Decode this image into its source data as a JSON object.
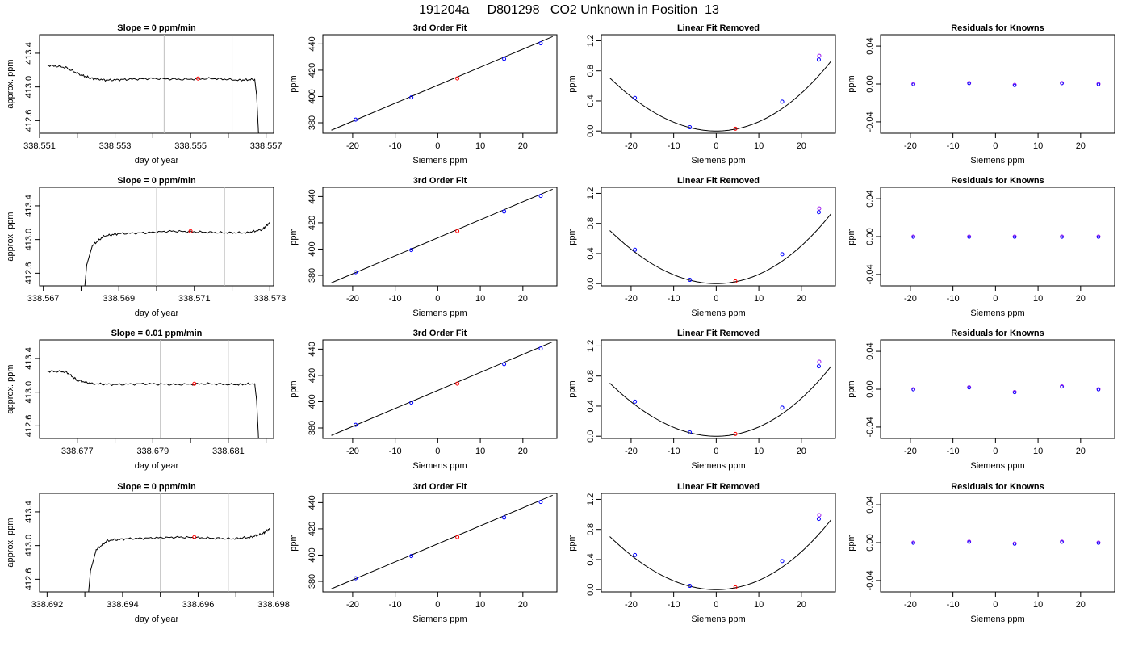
{
  "page_title": "191204a     D801298   CO2 Unknown in Position  13",
  "chart_data": [
    {
      "type": "line",
      "panel": "time-series",
      "row": 1,
      "title": "Slope =  0  ppm/min",
      "xlabel": "day of year",
      "ylabel": "approx. ppm",
      "xlim": [
        338.551,
        338.5572
      ],
      "ylim": [
        412.45,
        413.62
      ],
      "xticks": [
        338.551,
        338.552,
        338.553,
        338.554,
        338.555,
        338.556,
        338.557
      ],
      "xtick_labels": [
        "338.551",
        "",
        "338.553",
        "",
        "338.555",
        "",
        "338.557"
      ],
      "yticks": [
        412.6,
        413.0,
        413.4
      ],
      "ytick_labels": [
        "412.6",
        "413.0",
        "413.4"
      ],
      "vlines": [
        338.5543,
        338.5561
      ],
      "highlight_point": {
        "x": 338.5552,
        "y": 413.1
      },
      "series": [
        {
          "x": [
            338.5512,
            338.5517,
            338.5521,
            338.5524,
            338.5528,
            338.5533,
            338.554,
            338.5548,
            338.5556,
            338.5563,
            338.5567,
            338.55675,
            338.5568
          ],
          "y": [
            413.26,
            413.23,
            413.14,
            413.1,
            413.08,
            413.09,
            413.1,
            413.09,
            413.1,
            413.08,
            413.09,
            412.9,
            412.45
          ]
        }
      ]
    },
    {
      "type": "line",
      "panel": "time-series",
      "row": 2,
      "title": "Slope =  0  ppm/min",
      "xlabel": "day of year",
      "ylabel": "approx. ppm",
      "xlim": [
        338.5669,
        338.5731
      ],
      "ylim": [
        412.45,
        413.62
      ],
      "xticks": [
        338.567,
        338.568,
        338.569,
        338.57,
        338.571,
        338.572,
        338.573
      ],
      "xtick_labels": [
        "338.567",
        "",
        "338.569",
        "",
        "338.571",
        "",
        "338.573"
      ],
      "yticks": [
        412.6,
        413.0,
        413.4
      ],
      "ytick_labels": [
        "412.6",
        "413.0",
        "413.4"
      ],
      "vlines": [
        338.57,
        338.5718
      ],
      "highlight_point": {
        "x": 338.5709,
        "y": 413.1
      },
      "series": [
        {
          "x": [
            338.5681,
            338.56815,
            338.5683,
            338.5686,
            338.569,
            338.5697,
            338.5704,
            338.5711,
            338.5718,
            338.5724,
            338.5728,
            338.573
          ],
          "y": [
            412.45,
            412.7,
            412.93,
            413.04,
            413.07,
            413.08,
            413.1,
            413.09,
            413.08,
            413.08,
            413.12,
            413.2
          ]
        }
      ]
    },
    {
      "type": "line",
      "panel": "time-series",
      "row": 3,
      "title": "Slope =  0.01  ppm/min",
      "xlabel": "day of year",
      "ylabel": "approx. ppm",
      "xlim": [
        338.676,
        338.6822
      ],
      "ylim": [
        412.45,
        413.62
      ],
      "xticks": [
        338.677,
        338.678,
        338.679,
        338.68,
        338.681,
        338.682
      ],
      "xtick_labels": [
        "338.677",
        "",
        "338.679",
        "",
        "338.681",
        ""
      ],
      "yticks": [
        412.6,
        413.0,
        413.4
      ],
      "ytick_labels": [
        "412.6",
        "413.0",
        "413.4"
      ],
      "vlines": [
        338.6792,
        338.681
      ],
      "highlight_point": {
        "x": 338.6801,
        "y": 413.1
      },
      "series": [
        {
          "x": [
            338.6762,
            338.6767,
            338.677,
            338.6774,
            338.678,
            338.6788,
            338.6796,
            338.6804,
            338.6812,
            338.6817,
            338.68175,
            338.6818
          ],
          "y": [
            413.25,
            413.24,
            413.14,
            413.1,
            413.09,
            413.1,
            413.09,
            413.1,
            413.09,
            413.1,
            412.9,
            412.45
          ]
        }
      ]
    },
    {
      "type": "line",
      "panel": "time-series",
      "row": 4,
      "title": "Slope =  0  ppm/min",
      "xlabel": "day of year",
      "ylabel": "approx. ppm",
      "xlim": [
        338.6918,
        338.698
      ],
      "ylim": [
        412.45,
        413.62
      ],
      "xticks": [
        338.692,
        338.693,
        338.694,
        338.695,
        338.696,
        338.697,
        338.698
      ],
      "xtick_labels": [
        "338.692",
        "",
        "338.694",
        "",
        "338.696",
        "",
        "338.698"
      ],
      "yticks": [
        412.6,
        413.0,
        413.4
      ],
      "ytick_labels": [
        "412.6",
        "413.0",
        "413.4"
      ],
      "vlines": [
        338.695,
        338.6968
      ],
      "highlight_point": {
        "x": 338.6959,
        "y": 413.1
      },
      "series": [
        {
          "x": [
            338.6931,
            338.69315,
            338.6933,
            338.6936,
            338.6941,
            338.6948,
            338.6955,
            338.6962,
            338.6969,
            338.6974,
            338.6977,
            338.6979
          ],
          "y": [
            412.45,
            412.7,
            412.95,
            413.06,
            413.08,
            413.09,
            413.1,
            413.09,
            413.08,
            413.1,
            413.14,
            413.2
          ]
        }
      ]
    },
    {
      "type": "scatter",
      "panel": "fit",
      "row": 1,
      "title": "3rd Order Fit",
      "xlabel": "Siemens ppm",
      "ylabel": "ppm",
      "xlim": [
        -27,
        28
      ],
      "ylim": [
        372,
        447
      ],
      "xticks": [
        -20,
        -10,
        0,
        10,
        20
      ],
      "yticks": [
        380,
        400,
        420,
        440
      ],
      "line": {
        "x": [
          -25,
          27
        ],
        "y": [
          374.3,
          445.6
        ]
      },
      "points_known": {
        "x": [
          -19.3,
          -6.2,
          15.6,
          24.2
        ],
        "y": [
          382.4,
          399.3,
          428.6,
          440.5
        ]
      },
      "points_unknown": {
        "x": [
          4.6
        ],
        "y": [
          413.7
        ]
      }
    },
    {
      "type": "scatter",
      "panel": "fit",
      "row": 2,
      "title": "3rd Order Fit",
      "xlabel": "Siemens ppm",
      "ylabel": "ppm",
      "xlim": [
        -27,
        28
      ],
      "ylim": [
        372,
        447
      ],
      "xticks": [
        -20,
        -10,
        0,
        10,
        20
      ],
      "yticks": [
        380,
        400,
        420,
        440
      ],
      "line": {
        "x": [
          -25,
          27
        ],
        "y": [
          374.3,
          445.6
        ]
      },
      "points_known": {
        "x": [
          -19.3,
          -6.2,
          15.6,
          24.2
        ],
        "y": [
          382.4,
          399.3,
          428.6,
          440.5
        ]
      },
      "points_unknown": {
        "x": [
          4.6
        ],
        "y": [
          413.7
        ]
      }
    },
    {
      "type": "scatter",
      "panel": "fit",
      "row": 3,
      "title": "3rd Order Fit",
      "xlabel": "Siemens ppm",
      "ylabel": "ppm",
      "xlim": [
        -27,
        28
      ],
      "ylim": [
        372,
        447
      ],
      "xticks": [
        -20,
        -10,
        0,
        10,
        20
      ],
      "yticks": [
        380,
        400,
        420,
        440
      ],
      "line": {
        "x": [
          -25,
          27
        ],
        "y": [
          374.3,
          445.6
        ]
      },
      "points_known": {
        "x": [
          -19.3,
          -6.2,
          15.6,
          24.2
        ],
        "y": [
          382.4,
          399.3,
          428.6,
          440.5
        ]
      },
      "points_unknown": {
        "x": [
          4.6
        ],
        "y": [
          413.7
        ]
      }
    },
    {
      "type": "scatter",
      "panel": "fit",
      "row": 4,
      "title": "3rd Order Fit",
      "xlabel": "Siemens ppm",
      "ylabel": "ppm",
      "xlim": [
        -27,
        28
      ],
      "ylim": [
        372,
        447
      ],
      "xticks": [
        -20,
        -10,
        0,
        10,
        20
      ],
      "yticks": [
        380,
        400,
        420,
        440
      ],
      "line": {
        "x": [
          -25,
          27
        ],
        "y": [
          374.3,
          445.6
        ]
      },
      "points_known": {
        "x": [
          -19.3,
          -6.2,
          15.6,
          24.2
        ],
        "y": [
          382.4,
          399.3,
          428.6,
          440.5
        ]
      },
      "points_unknown": {
        "x": [
          4.6
        ],
        "y": [
          413.7
        ]
      }
    },
    {
      "type": "scatter",
      "panel": "linear-removed",
      "row": 1,
      "title": "Linear Fit Removed",
      "xlabel": "Siemens ppm",
      "ylabel": "ppm",
      "xlim": [
        -27,
        28
      ],
      "ylim": [
        -0.03,
        1.28
      ],
      "xticks": [
        -20,
        -10,
        0,
        10,
        20
      ],
      "yticks": [
        0.0,
        0.4,
        0.8,
        1.2
      ],
      "curve_coefficients": {
        "a": 0.0012,
        "b": 1e-05,
        "c": 2.8e-06
      },
      "points_known": {
        "x": [
          -19.1,
          -6.2,
          15.5,
          24.1,
          24.2
        ],
        "y": [
          0.44,
          0.05,
          0.39,
          0.95,
          1.0
        ]
      },
      "points_unknown": {
        "x": [
          4.5
        ],
        "y": [
          0.03
        ]
      }
    },
    {
      "type": "scatter",
      "panel": "linear-removed",
      "row": 2,
      "title": "Linear Fit Removed",
      "xlabel": "Siemens ppm",
      "ylabel": "ppm",
      "xlim": [
        -27,
        28
      ],
      "ylim": [
        -0.03,
        1.28
      ],
      "xticks": [
        -20,
        -10,
        0,
        10,
        20
      ],
      "yticks": [
        0.0,
        0.4,
        0.8,
        1.2
      ],
      "curve_coefficients": {
        "a": 0.0012,
        "b": 1e-05,
        "c": 2.8e-06
      },
      "points_known": {
        "x": [
          -19.1,
          -6.2,
          15.5,
          24.1,
          24.2
        ],
        "y": [
          0.45,
          0.05,
          0.39,
          0.95,
          1.0
        ]
      },
      "points_unknown": {
        "x": [
          4.5
        ],
        "y": [
          0.03
        ]
      }
    },
    {
      "type": "scatter",
      "panel": "linear-removed",
      "row": 3,
      "title": "Linear Fit Removed",
      "xlabel": "Siemens ppm",
      "ylabel": "ppm",
      "xlim": [
        -27,
        28
      ],
      "ylim": [
        -0.03,
        1.28
      ],
      "xticks": [
        -20,
        -10,
        0,
        10,
        20
      ],
      "yticks": [
        0.0,
        0.4,
        0.8,
        1.2
      ],
      "curve_coefficients": {
        "a": 0.0012,
        "b": 1e-05,
        "c": 2.8e-06
      },
      "points_known": {
        "x": [
          -19.1,
          -6.2,
          15.5,
          24.1,
          24.2
        ],
        "y": [
          0.46,
          0.05,
          0.38,
          0.93,
          0.99
        ]
      },
      "points_unknown": {
        "x": [
          4.5
        ],
        "y": [
          0.03
        ]
      }
    },
    {
      "type": "scatter",
      "panel": "linear-removed",
      "row": 4,
      "title": "Linear Fit Removed",
      "xlabel": "Siemens ppm",
      "ylabel": "ppm",
      "xlim": [
        -27,
        28
      ],
      "ylim": [
        -0.03,
        1.28
      ],
      "xticks": [
        -20,
        -10,
        0,
        10,
        20
      ],
      "yticks": [
        0.0,
        0.4,
        0.8,
        1.2
      ],
      "curve_coefficients": {
        "a": 0.0012,
        "b": 1e-05,
        "c": 2.8e-06
      },
      "points_known": {
        "x": [
          -19.1,
          -6.2,
          15.5,
          24.1,
          24.2
        ],
        "y": [
          0.46,
          0.05,
          0.38,
          0.94,
          0.99
        ]
      },
      "points_unknown": {
        "x": [
          4.5
        ],
        "y": [
          0.03
        ]
      }
    },
    {
      "type": "scatter",
      "panel": "residuals",
      "row": 1,
      "title": "Residuals for Knowns",
      "xlabel": "Siemens ppm",
      "ylabel": "ppm",
      "xlim": [
        -27,
        28
      ],
      "ylim": [
        -0.052,
        0.052
      ],
      "xticks": [
        -20,
        -10,
        0,
        10,
        20
      ],
      "yticks": [
        -0.04,
        0.0,
        0.04
      ],
      "ytick_labels": [
        "-0.04",
        "0.00",
        "0.04"
      ],
      "points": {
        "x": [
          -19.3,
          -6.2,
          4.5,
          15.6,
          24.2
        ],
        "y": [
          0.0,
          0.001,
          -0.001,
          0.001,
          0.0
        ]
      }
    },
    {
      "type": "scatter",
      "panel": "residuals",
      "row": 2,
      "title": "Residuals for Knowns",
      "xlabel": "Siemens ppm",
      "ylabel": "ppm",
      "xlim": [
        -27,
        28
      ],
      "ylim": [
        -0.052,
        0.052
      ],
      "xticks": [
        -20,
        -10,
        0,
        10,
        20
      ],
      "yticks": [
        -0.04,
        0.0,
        0.04
      ],
      "ytick_labels": [
        "-0.04",
        "0.00",
        "0.04"
      ],
      "points": {
        "x": [
          -19.3,
          -6.2,
          4.5,
          15.6,
          24.2
        ],
        "y": [
          0.0,
          0.0,
          0.0,
          0.0,
          0.0
        ]
      }
    },
    {
      "type": "scatter",
      "panel": "residuals",
      "row": 3,
      "title": "Residuals for Knowns",
      "xlabel": "Siemens ppm",
      "ylabel": "ppm",
      "xlim": [
        -27,
        28
      ],
      "ylim": [
        -0.052,
        0.052
      ],
      "xticks": [
        -20,
        -10,
        0,
        10,
        20
      ],
      "yticks": [
        -0.04,
        0.0,
        0.04
      ],
      "ytick_labels": [
        "-0.04",
        "0.00",
        "0.04"
      ],
      "points": {
        "x": [
          -19.3,
          -6.2,
          4.5,
          15.6,
          24.2
        ],
        "y": [
          0.0,
          0.002,
          -0.003,
          0.003,
          0.0
        ]
      }
    },
    {
      "type": "scatter",
      "panel": "residuals",
      "row": 4,
      "title": "Residuals for Knowns",
      "xlabel": "Siemens ppm",
      "ylabel": "ppm",
      "xlim": [
        -27,
        28
      ],
      "ylim": [
        -0.052,
        0.052
      ],
      "xticks": [
        -20,
        -10,
        0,
        10,
        20
      ],
      "yticks": [
        -0.04,
        0.0,
        0.04
      ],
      "ytick_labels": [
        "-0.04",
        "0.00",
        "0.04"
      ],
      "points": {
        "x": [
          -19.3,
          -6.2,
          4.5,
          15.6,
          24.2
        ],
        "y": [
          0.0,
          0.001,
          -0.001,
          0.001,
          0.0
        ]
      }
    }
  ],
  "colors": {
    "line": "#000000",
    "vline": "#bebebe",
    "known": "#0000ff",
    "unknown": "#ff0000",
    "residual": "#a020f0"
  }
}
